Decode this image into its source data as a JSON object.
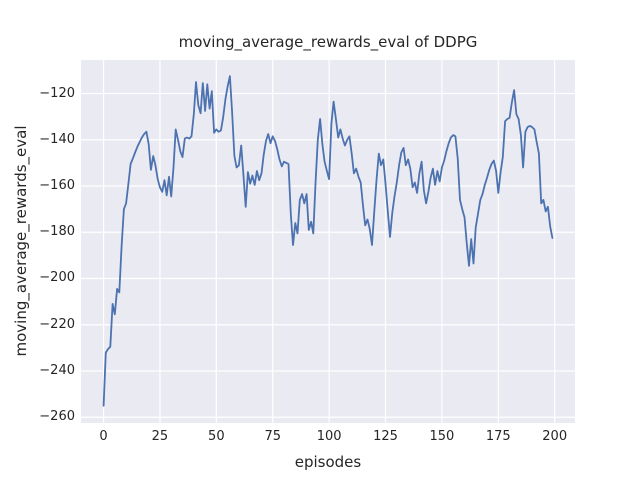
{
  "chart_data": {
    "type": "line",
    "title": "moving_average_rewards_eval of DDPG",
    "xlabel": "episodes",
    "ylabel": "moving_average_rewards_eval",
    "xlim": [
      -10,
      209
    ],
    "ylim": [
      -262.5,
      -105.5
    ],
    "grid": true,
    "legend_position": "none",
    "x_ticks": [
      {
        "value": 0,
        "label": "0"
      },
      {
        "value": 25,
        "label": "25"
      },
      {
        "value": 50,
        "label": "50"
      },
      {
        "value": 75,
        "label": "75"
      },
      {
        "value": 100,
        "label": "100"
      },
      {
        "value": 125,
        "label": "125"
      },
      {
        "value": 150,
        "label": "150"
      },
      {
        "value": 175,
        "label": "175"
      },
      {
        "value": 200,
        "label": "200"
      }
    ],
    "y_ticks": [
      {
        "value": -120,
        "label": "−120"
      },
      {
        "value": -140,
        "label": "−140"
      },
      {
        "value": -160,
        "label": "−160"
      },
      {
        "value": -180,
        "label": "−180"
      },
      {
        "value": -200,
        "label": "−200"
      },
      {
        "value": -220,
        "label": "−220"
      },
      {
        "value": -240,
        "label": "−240"
      },
      {
        "value": -260,
        "label": "−260"
      }
    ],
    "colors": {
      "line": "#4C72B0",
      "plot_background": "#EAEAF2",
      "grid": "#FFFFFF",
      "figure_background": "#FFFFFF",
      "text": "#262626"
    },
    "series": [
      {
        "name": "moving_average_rewards_eval",
        "x_start": 0,
        "x_step": 1,
        "values": [
          -255,
          -232,
          -230.5,
          -229.5,
          -211,
          -215.5,
          -204.5,
          -206,
          -186,
          -170,
          -167.5,
          -159,
          -150.5,
          -148,
          -145.5,
          -143,
          -141,
          -139,
          -137.5,
          -136.5,
          -142,
          -153,
          -147,
          -151,
          -157,
          -160.5,
          -162.5,
          -157.5,
          -164,
          -156,
          -164.5,
          -152,
          -135.5,
          -140,
          -145,
          -147.5,
          -139.5,
          -139,
          -139.5,
          -138.5,
          -129,
          -115,
          -125,
          -128.5,
          -115.5,
          -127.5,
          -116,
          -126.5,
          -119,
          -137,
          -135.5,
          -136.5,
          -136,
          -130.5,
          -122.5,
          -117,
          -112.5,
          -128,
          -147,
          -152,
          -151,
          -142.5,
          -155,
          -169,
          -154,
          -159,
          -155.5,
          -159.5,
          -153.5,
          -157.5,
          -154.5,
          -146.5,
          -140.5,
          -137.5,
          -141.5,
          -138.5,
          -140.5,
          -144,
          -148.5,
          -151.5,
          -149.5,
          -150,
          -150.5,
          -172,
          -185.5,
          -176,
          -180.5,
          -166,
          -163.5,
          -167.5,
          -163.5,
          -179,
          -175.5,
          -180.5,
          -158,
          -140,
          -131,
          -142,
          -149.5,
          -153.5,
          -157,
          -133,
          -123.5,
          -131,
          -139,
          -135.5,
          -139.5,
          -142.5,
          -140,
          -138.5,
          -146,
          -154.5,
          -152.5,
          -156,
          -158.5,
          -168.5,
          -177,
          -174.5,
          -178.5,
          -185.5,
          -171.5,
          -157.5,
          -146,
          -151,
          -148.5,
          -159,
          -171,
          -182,
          -171.5,
          -164.5,
          -158.5,
          -151,
          -145.5,
          -143.5,
          -151,
          -148.5,
          -152.5,
          -160.5,
          -158.5,
          -163,
          -154.5,
          -149.5,
          -162,
          -167.5,
          -162.5,
          -156.5,
          -152.5,
          -159.5,
          -153.5,
          -158,
          -152,
          -149,
          -145,
          -141.5,
          -139,
          -138,
          -138.5,
          -148,
          -166,
          -170,
          -173.5,
          -184.5,
          -194.5,
          -183,
          -193.5,
          -178,
          -172,
          -166,
          -163.5,
          -159.5,
          -156.5,
          -153,
          -150.5,
          -149,
          -153.5,
          -163,
          -154,
          -147.5,
          -132,
          -131,
          -130.5,
          -124,
          -118.5,
          -129,
          -131,
          -138,
          -152,
          -136.5,
          -134.5,
          -134,
          -134.5,
          -135.5,
          -141,
          -146,
          -167.5,
          -166,
          -171,
          -169,
          -177.5,
          -182.5
        ]
      }
    ]
  }
}
